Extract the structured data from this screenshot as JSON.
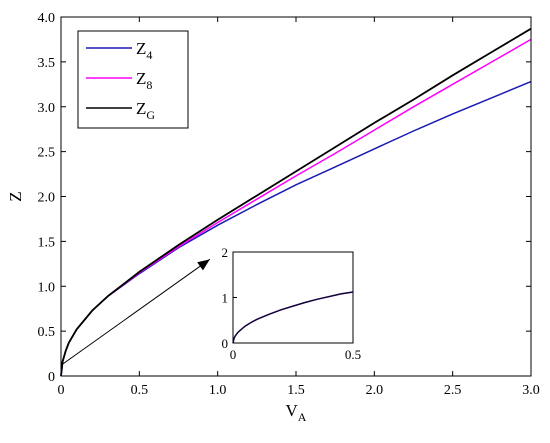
{
  "chart_data": {
    "type": "line",
    "title": "",
    "xlabel": {
      "main": "V",
      "sub": "A"
    },
    "ylabel": "Z",
    "xlim": [
      0,
      3.0
    ],
    "ylim": [
      0,
      4.0
    ],
    "xticks": [
      "0",
      "0.5",
      "1.0",
      "1.5",
      "2.0",
      "2.5",
      "3.0"
    ],
    "yticks": [
      "0",
      "0.5",
      "1.0",
      "1.5",
      "2.0",
      "2.5",
      "3.0",
      "3.5",
      "4.0"
    ],
    "grid": false,
    "legend_position": "top-left",
    "series": [
      {
        "name": {
          "main": "Z",
          "sub": "4"
        },
        "color": "#1a1ab4",
        "x": [
          0,
          0.01,
          0.03,
          0.05,
          0.1,
          0.2,
          0.3,
          0.5,
          0.75,
          1.0,
          1.25,
          1.5,
          1.75,
          2.0,
          2.25,
          2.5,
          2.75,
          3.0
        ],
        "y": [
          0,
          0.16,
          0.28,
          0.37,
          0.52,
          0.73,
          0.89,
          1.14,
          1.43,
          1.68,
          1.91,
          2.13,
          2.33,
          2.53,
          2.73,
          2.92,
          3.1,
          3.28
        ]
      },
      {
        "name": {
          "main": "Z",
          "sub": "8"
        },
        "color": "#ff00ff",
        "x": [
          0,
          0.01,
          0.03,
          0.05,
          0.1,
          0.2,
          0.3,
          0.5,
          0.75,
          1.0,
          1.25,
          1.5,
          1.75,
          2.0,
          2.25,
          2.5,
          2.75,
          3.0
        ],
        "y": [
          0,
          0.16,
          0.28,
          0.37,
          0.52,
          0.73,
          0.89,
          1.15,
          1.44,
          1.71,
          1.97,
          2.23,
          2.48,
          2.74,
          3.0,
          3.25,
          3.5,
          3.75
        ]
      },
      {
        "name": {
          "main": "Z",
          "sub": "G"
        },
        "color": "#000000",
        "x": [
          0,
          0.01,
          0.03,
          0.05,
          0.1,
          0.2,
          0.3,
          0.5,
          0.75,
          1.0,
          1.25,
          1.5,
          1.75,
          2.0,
          2.25,
          2.5,
          2.75,
          3.0
        ],
        "y": [
          0,
          0.16,
          0.28,
          0.37,
          0.52,
          0.73,
          0.89,
          1.16,
          1.46,
          1.74,
          2.01,
          2.28,
          2.55,
          2.82,
          3.08,
          3.35,
          3.61,
          3.87
        ]
      }
    ],
    "inset": {
      "xlim": [
        0,
        0.5
      ],
      "ylim": [
        0,
        2
      ],
      "xticks": [
        "0",
        "0.5"
      ],
      "yticks": [
        "0",
        "1",
        "2"
      ],
      "x": [
        0,
        0.005,
        0.01,
        0.02,
        0.03,
        0.05,
        0.075,
        0.1,
        0.15,
        0.2,
        0.25,
        0.3,
        0.35,
        0.4,
        0.45,
        0.5
      ],
      "y": [
        0,
        0.11,
        0.16,
        0.23,
        0.28,
        0.37,
        0.45,
        0.52,
        0.63,
        0.73,
        0.81,
        0.89,
        0.96,
        1.02,
        1.08,
        1.12
      ]
    },
    "annotation_arrow": {
      "from": [
        0,
        0.12
      ],
      "to": [
        0.95,
        1.3
      ]
    }
  }
}
